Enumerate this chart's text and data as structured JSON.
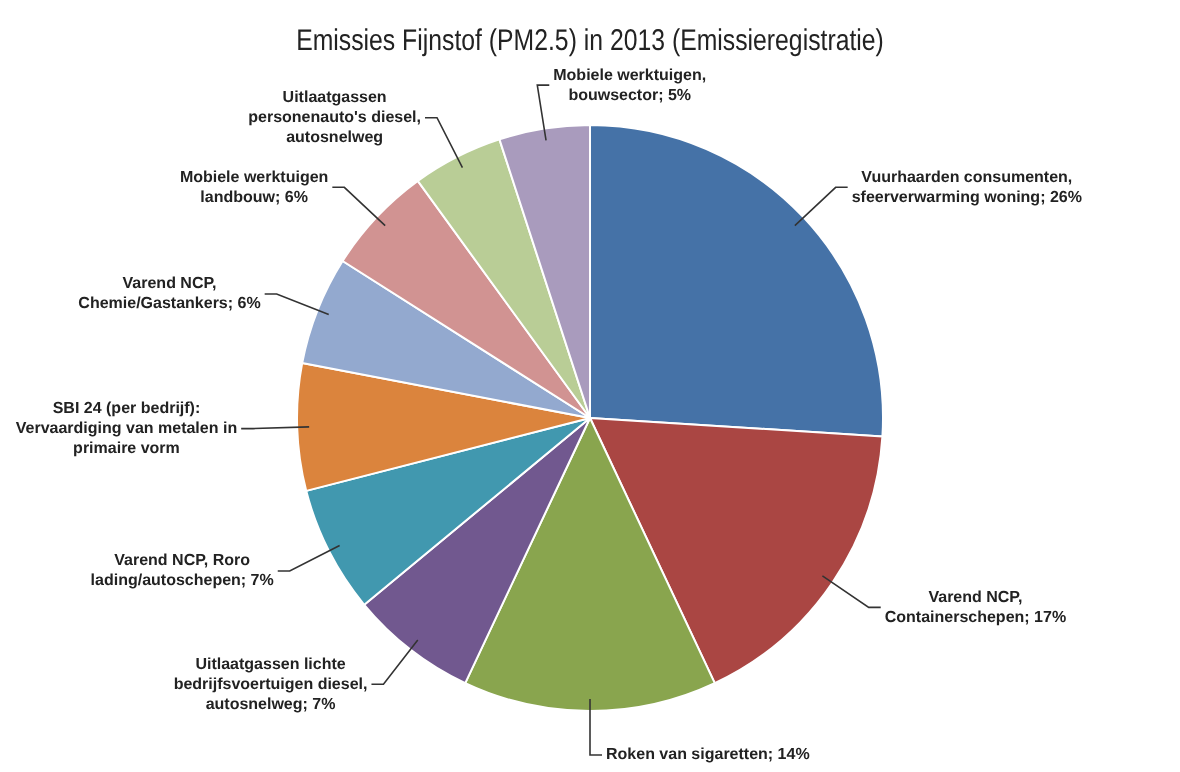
{
  "chart_data": {
    "type": "pie",
    "title": "Emissies Fijnstof (PM2.5) in 2013 (Emissieregistratie)",
    "categories": [
      "Vuurhaarden consumenten, sfeerverwarming woning",
      "Varend NCP, Containerschepen",
      "Roken van sigaretten",
      "Uitlaatgassen lichte bedrijfsvoertuigen diesel, autosnelweg",
      "Varend NCP, Roro lading/autoschepen",
      "SBI 24 (per bedrijf): Vervaardiging van metalen in primaire vorm",
      "Varend NCP, Chemie/Gastankers",
      "Mobiele werktuigen landbouw",
      "Uitlaatgassen personenauto's diesel, autosnelweg",
      "Mobiele werktuigen, bouwsector"
    ],
    "values": [
      26,
      17,
      14,
      7,
      7,
      7,
      6,
      6,
      5,
      5
    ],
    "value_labels": [
      "26%",
      "17%",
      "14%",
      "7%",
      "7%",
      null,
      "6%",
      "6%",
      null,
      "5%"
    ],
    "colors": [
      "#4572a7",
      "#aa4643",
      "#89a54e",
      "#71588f",
      "#4198af",
      "#db843d",
      "#93a9cf",
      "#d19392",
      "#b9cd96",
      "#a99bbd"
    ],
    "legend": false
  }
}
